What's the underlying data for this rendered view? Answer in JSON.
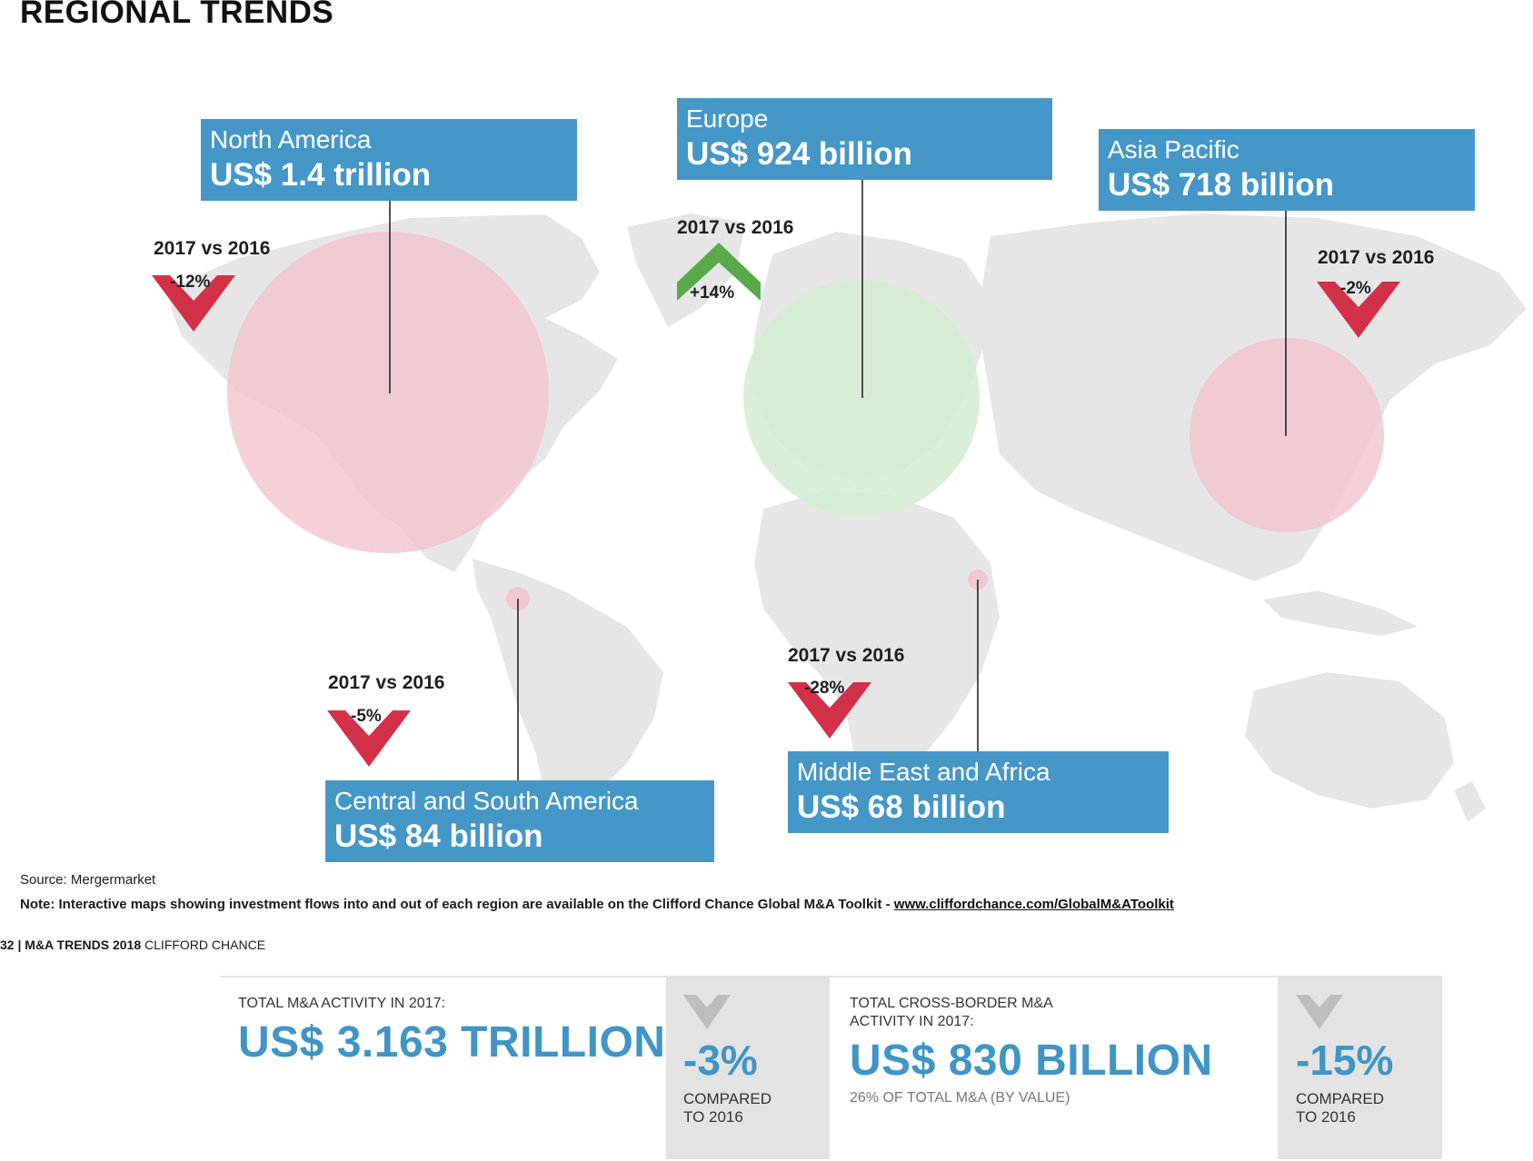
{
  "page": {
    "title": "REGIONAL TRENDS"
  },
  "colors": {
    "box": "#4597c8",
    "decline": "#d33147",
    "increase": "#5aaa4c",
    "land": "#e6e6e6",
    "decline_bubble": "#f2c4cc",
    "increase_bubble": "#d3ecd0",
    "stat_blue": "#3f95c6"
  },
  "regions": [
    {
      "name": "North America",
      "value": "US$ 1.4 trillion",
      "comparison_label": "2017 vs 2016",
      "change": "-12%",
      "direction": "down"
    },
    {
      "name": "Europe",
      "value": "US$ 924 billion",
      "comparison_label": "2017 vs 2016",
      "change": "+14%",
      "direction": "up"
    },
    {
      "name": "Asia Pacific",
      "value": "US$ 718 billion",
      "comparison_label": "2017 vs 2016",
      "change": "-2%",
      "direction": "down"
    },
    {
      "name": "Central and South America",
      "value": "US$ 84 billion",
      "comparison_label": "2017 vs 2016",
      "change": "-5%",
      "direction": "down"
    },
    {
      "name": "Middle East and Africa",
      "value": "US$ 68 billion",
      "comparison_label": "2017 vs 2016",
      "change": "-28%",
      "direction": "down"
    }
  ],
  "source": "Source: Mergermarket",
  "note": {
    "text": "Note: Interactive maps showing investment flows into and out of each region are available on the Clifford Chance Global M&A Toolkit - ",
    "link": "www.cliffordchance.com/GlobalM&AToolkit"
  },
  "footer": {
    "page_number": "32",
    "separator": "|",
    "publication": "M&A TRENDS 2018",
    "company": "CLIFFORD CHANCE"
  },
  "stats": [
    {
      "label": "TOTAL M&A ACTIVITY IN 2017:",
      "value": "US$ 3.163 TRILLION",
      "change": "-3%",
      "compared_line1": "COMPARED",
      "compared_line2": "TO 2016"
    },
    {
      "label_line1": "TOTAL CROSS-BORDER M&A",
      "label_line2": "ACTIVITY IN 2017:",
      "value": "US$ 830 BILLION",
      "subtext": "26% OF TOTAL M&A (BY VALUE)",
      "change": "-15%",
      "compared_line1": "COMPARED",
      "compared_line2": "TO 2016"
    }
  ]
}
